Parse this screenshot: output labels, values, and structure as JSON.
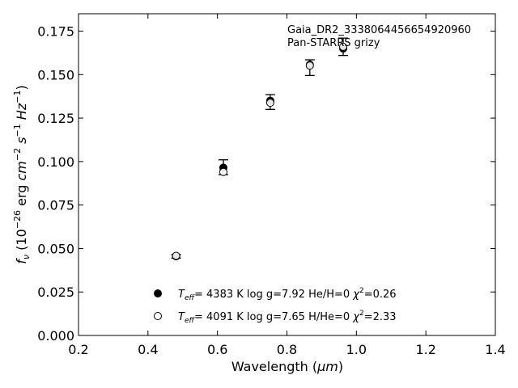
{
  "chart_data": {
    "type": "scatter",
    "annotations": [
      "Gaia_DR2_3338064456654920960",
      "Pan-STARRS grizy"
    ],
    "xlabel": {
      "main": "Wavelength (",
      "unit": "μm",
      "tail": ")"
    },
    "ylabel": {
      "f": "f",
      "sub": "ν",
      "open": " (10",
      "exp1": "−26",
      "mid": " erg ",
      "cm": "cm",
      "exp2": "−2",
      "s": " s",
      "exp3": "−1",
      "hz": " Hz",
      "exp4": "−1",
      "close": ")"
    },
    "xlim": [
      0.2,
      1.4
    ],
    "ylim": [
      0.0,
      0.185
    ],
    "xticks": [
      "0.2",
      "0.4",
      "0.6",
      "0.8",
      "1.0",
      "1.2",
      "1.4"
    ],
    "yticks": [
      "0.000",
      "0.025",
      "0.050",
      "0.075",
      "0.100",
      "0.125",
      "0.150",
      "0.175"
    ],
    "grid": false,
    "legend_position": "lower-center",
    "observed": {
      "x": [
        0.481,
        0.617,
        0.752,
        0.866,
        0.962
      ],
      "y": [
        0.0455,
        0.097,
        0.1343,
        0.156,
        0.166
      ],
      "yerr_low": [
        0.0445,
        0.0925,
        0.13,
        0.1495,
        0.161
      ],
      "yerr_high": [
        0.0465,
        0.101,
        0.1385,
        0.1585,
        0.171
      ]
    },
    "series": [
      {
        "marker": "filled",
        "label": {
          "t": "T",
          "tsub": "eff",
          "rest": "=  4383 K  log g=7.92  He/H=0  ",
          "chi": "χ",
          "chisup": "2",
          "chival": "=0.26"
        },
        "y": [
          0.0455,
          0.0965,
          0.135,
          0.1557,
          0.165
        ]
      },
      {
        "marker": "open",
        "label": {
          "t": "T",
          "tsub": "eff",
          "rest": "=  4091 K  log g=7.65  H/He=0  ",
          "chi": "χ",
          "chisup": "2",
          "chival": "=2.33"
        },
        "y": [
          0.0458,
          0.094,
          0.1338,
          0.1552,
          0.166
        ]
      }
    ]
  }
}
